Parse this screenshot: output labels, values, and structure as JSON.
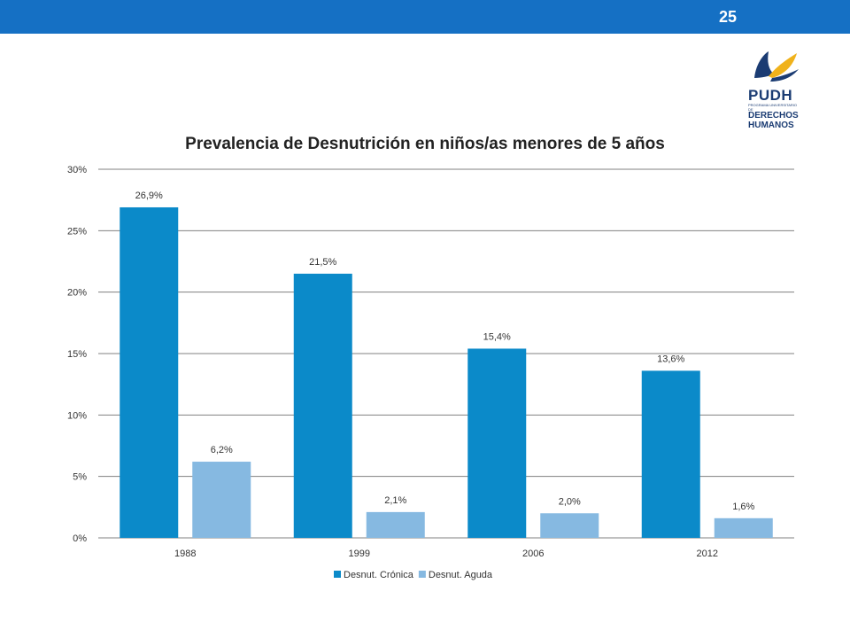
{
  "slide": {
    "number": "25"
  },
  "logo": {
    "acronym": "PUDH",
    "small_text": "PROGRAMA UNIVERSITARIO DE",
    "name_line1": "DERECHOS",
    "name_line2": "HUMANOS"
  },
  "colors": {
    "top_bar": "#1570c4",
    "series_1": "#0b8ac9",
    "series_2": "#86b9e1",
    "grid": "#808080"
  },
  "chart_data": {
    "type": "bar",
    "title": "Prevalencia de Desnutrición en niños/as menores de 5 años",
    "categories": [
      "1988",
      "1999",
      "2006",
      "2012"
    ],
    "series": [
      {
        "name": "Desnut. Crónica",
        "values": [
          26.9,
          21.5,
          15.4,
          13.6
        ],
        "labels": [
          "26,9%",
          "21,5%",
          "15,4%",
          "13,6%"
        ],
        "color": "#0b8ac9"
      },
      {
        "name": "Desnut. Aguda",
        "values": [
          6.2,
          2.1,
          2.0,
          1.6
        ],
        "labels": [
          "6,2%",
          "2,1%",
          "2,0%",
          "1,6%"
        ],
        "color": "#86b9e1"
      }
    ],
    "ylim": [
      0,
      30
    ],
    "yticks": [
      0,
      5,
      10,
      15,
      20,
      25,
      30
    ],
    "ytick_labels": [
      "0%",
      "5%",
      "10%",
      "15%",
      "20%",
      "25%",
      "30%"
    ],
    "xlabel": "",
    "ylabel": "",
    "grid": true,
    "legend_position": "bottom"
  }
}
